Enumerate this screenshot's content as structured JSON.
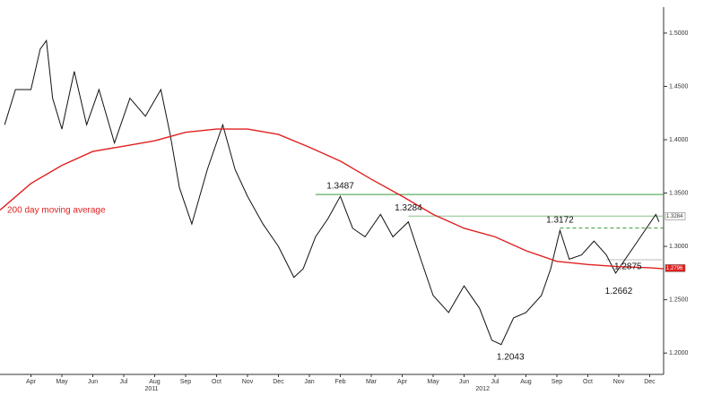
{
  "chart_data": {
    "type": "line",
    "xlim": [
      0,
      21.45
    ],
    "ylim": [
      1.18,
      1.531
    ],
    "xticks": [
      {
        "value": 1,
        "label": "Apr"
      },
      {
        "value": 2,
        "label": "May"
      },
      {
        "value": 3,
        "label": "Jun"
      },
      {
        "value": 4,
        "label": "Jul"
      },
      {
        "value": 5,
        "label": "Aug"
      },
      {
        "value": 6,
        "label": "Sep"
      },
      {
        "value": 7,
        "label": "Oct"
      },
      {
        "value": 8,
        "label": "Nov"
      },
      {
        "value": 9,
        "label": "Dec"
      },
      {
        "value": 10,
        "label": "Jan"
      },
      {
        "value": 11,
        "label": "Feb"
      },
      {
        "value": 12,
        "label": "Mar"
      },
      {
        "value": 13,
        "label": "Apr"
      },
      {
        "value": 14,
        "label": "May"
      },
      {
        "value": 15,
        "label": "Jun"
      },
      {
        "value": 16,
        "label": "Jul"
      },
      {
        "value": 17,
        "label": "Aug"
      },
      {
        "value": 18,
        "label": "Sep"
      },
      {
        "value": 19,
        "label": "Oct"
      },
      {
        "value": 20,
        "label": "Nov"
      },
      {
        "value": 21,
        "label": "Dec"
      }
    ],
    "years": [
      {
        "value": 4.9,
        "label": "2011"
      },
      {
        "value": 15.6,
        "label": "2012"
      }
    ],
    "yticks": [
      {
        "value": 1.2,
        "label": "1.2000"
      },
      {
        "value": 1.25,
        "label": "1.2500"
      },
      {
        "value": 1.3,
        "label": "1.3000"
      },
      {
        "value": 1.35,
        "label": "1.3500"
      },
      {
        "value": 1.4,
        "label": "1.4000"
      },
      {
        "value": 1.45,
        "label": "1.4500"
      },
      {
        "value": 1.5,
        "label": "1.5000"
      }
    ],
    "series": [
      {
        "color": "#111111",
        "x": [
          0.15,
          0.5,
          1,
          1.3,
          1.5,
          1.7,
          2,
          2.4,
          2.8,
          3.2,
          3.7,
          4.2,
          4.7,
          5.2,
          5.5,
          5.8,
          6.2,
          6.7,
          7.2,
          7.6,
          8,
          8.5,
          9,
          9.5,
          9.8,
          10.2,
          10.6,
          11,
          11.4,
          11.8,
          12.3,
          12.7,
          13.2,
          13.6,
          14,
          14.5,
          15,
          15.5,
          15.9,
          16.2,
          16.6,
          17,
          17.5,
          17.8,
          18.1,
          18.4,
          18.8,
          19.2,
          19.6,
          19.9,
          20.4,
          20.8,
          21.2,
          21.3
        ],
        "values": [
          1.414,
          1.447,
          1.447,
          1.485,
          1.493,
          1.439,
          1.41,
          1.464,
          1.414,
          1.447,
          1.397,
          1.439,
          1.422,
          1.447,
          1.405,
          1.355,
          1.321,
          1.372,
          1.414,
          1.372,
          1.347,
          1.321,
          1.3,
          1.271,
          1.279,
          1.309,
          1.326,
          1.347,
          1.317,
          1.309,
          1.33,
          1.309,
          1.323,
          1.288,
          1.254,
          1.238,
          1.263,
          1.242,
          1.212,
          1.208,
          1.233,
          1.238,
          1.254,
          1.279,
          1.315,
          1.288,
          1.292,
          1.305,
          1.292,
          1.275,
          1.296,
          1.313,
          1.33,
          1.323
        ]
      },
      {
        "name": "200 day moving average",
        "color": "#e02020",
        "x": [
          0,
          1,
          2,
          3,
          4,
          5,
          6,
          7,
          8,
          9,
          10,
          11,
          12,
          13,
          14,
          15,
          16,
          17,
          18,
          19,
          20,
          21,
          21.45
        ],
        "values": [
          1.334,
          1.359,
          1.376,
          1.389,
          1.394,
          1.399,
          1.407,
          1.41,
          1.41,
          1.405,
          1.393,
          1.38,
          1.363,
          1.347,
          1.33,
          1.317,
          1.309,
          1.296,
          1.286,
          1.283,
          1.281,
          1.28,
          1.279
        ]
      }
    ],
    "levels": [
      {
        "value": 1.3487,
        "from": 10.2,
        "color": "#3a9a3a"
      },
      {
        "value": 1.3284,
        "from": 13.2,
        "color": "#8ac08a"
      },
      {
        "value": 1.3172,
        "from": 18.1,
        "color": "#3a9a3a"
      },
      {
        "value": 1.2875,
        "from": 19.6,
        "color": "#bbbbbb"
      }
    ],
    "annotations": [
      {
        "value": 1.3487,
        "x": 11
      },
      {
        "value": 1.3284,
        "x": 13.2
      },
      {
        "value": 1.3172,
        "x": 18.1
      },
      {
        "value": 1.2875,
        "x": 20.3
      },
      {
        "value": 1.2662,
        "x": 20
      },
      {
        "value": 1.2043,
        "x": 16.5
      }
    ],
    "price_tags": [
      {
        "value": 1.3284,
        "label": "1.3284",
        "color": "#ffffff"
      },
      {
        "value": 1.2796,
        "label": "1.2796",
        "color": "#e02020"
      }
    ]
  }
}
